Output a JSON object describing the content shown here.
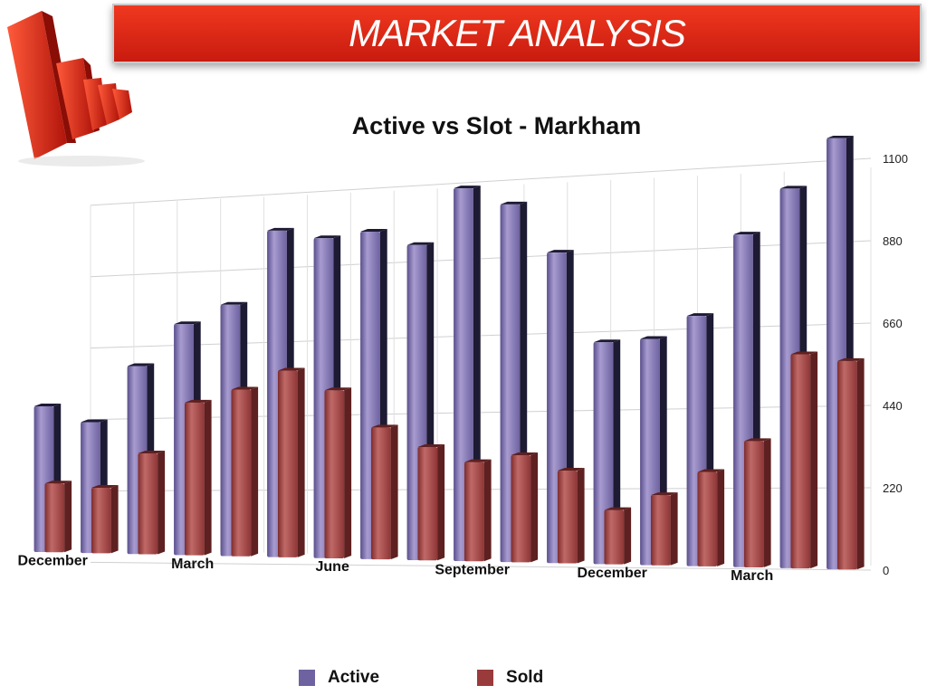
{
  "header": {
    "title": "MARKET ANALYSIS"
  },
  "chart_data": {
    "type": "bar",
    "title": "Active vs Slot - Markham",
    "x_tick_labels": [
      "December",
      "March",
      "June",
      "September",
      "December",
      "March"
    ],
    "x_tick_indices": [
      0,
      3,
      6,
      9,
      12,
      15
    ],
    "series": [
      {
        "name": "Active",
        "color": "#6e62a0",
        "values": [
          454,
          404,
          575,
          700,
          755,
          972,
          944,
          958,
          914,
          1072,
          1020,
          878,
          622,
          629,
          690,
          910,
          1030,
          1160
        ]
      },
      {
        "name": "Sold",
        "color": "#9a3b3b",
        "values": [
          214,
          202,
          308,
          462,
          500,
          555,
          495,
          385,
          328,
          285,
          305,
          262,
          152,
          195,
          260,
          345,
          580,
          560
        ]
      }
    ],
    "y_ticks": [
      0,
      220,
      440,
      660,
      880,
      1100
    ],
    "ylim": [
      0,
      1100
    ],
    "grid": true,
    "legend_position": "bottom"
  }
}
